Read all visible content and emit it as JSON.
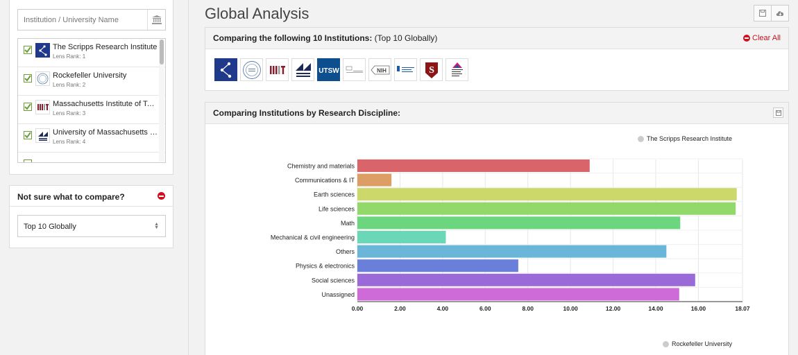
{
  "sidebar": {
    "search_placeholder": "Institution / University Name",
    "institutions": [
      {
        "name": "The Scripps Research Institute",
        "rank": "Lens Rank: 1",
        "checked": true
      },
      {
        "name": "Rockefeller University",
        "rank": "Lens Rank: 2",
        "checked": true
      },
      {
        "name": "Massachusetts Institute of Tech…",
        "rank": "Lens Rank: 3",
        "checked": true
      },
      {
        "name": "University of Massachusetts Me…",
        "rank": "Lens Rank: 4",
        "checked": true
      }
    ],
    "compare_title": "Not sure what to compare?",
    "compare_select": "Top 10 Globally"
  },
  "main": {
    "title": "Global Analysis",
    "comparing_title": "Comparing the following 10 Institutions:",
    "comparing_suffix": "(Top 10 Globally)",
    "clear_all": "Clear All",
    "logos": [
      "scripps-logo",
      "rockefeller-logo",
      "mit-logo",
      "umass-medical-logo",
      "utsw-logo",
      "gladstone-logo",
      "nih-logo",
      "uc-logo",
      "stanford-logo",
      "icahn-mount-sinai-logo"
    ],
    "discipline_title": "Comparing Institutions by Research Discipline:",
    "legend_top": "The Scripps Research Institute",
    "legend_bottom": "Rockefeller University"
  },
  "colors": {
    "accent_red": "#d0101e",
    "checkbox_green": "#6a9e3a"
  },
  "chart_data": {
    "type": "bar",
    "orientation": "horizontal",
    "categories": [
      "Chemistry and materials",
      "Communications & IT",
      "Earth sciences",
      "Life sciences",
      "Math",
      "Mechanical & civil engineering",
      "Others",
      "Physics & electronics",
      "Social sciences",
      "Unassigned"
    ],
    "values": [
      10.9,
      1.6,
      17.8,
      17.75,
      15.15,
      4.15,
      14.5,
      7.55,
      15.85,
      15.1
    ],
    "colors": [
      "#d9656a",
      "#dd9e66",
      "#ccd86a",
      "#92d86a",
      "#6bd67e",
      "#6ad8b6",
      "#6ab6d9",
      "#6a7fd9",
      "#9a6ad9",
      "#cf6ad9"
    ],
    "xticks": [
      "0.00",
      "2.00",
      "4.00",
      "6.00",
      "8.00",
      "10.00",
      "12.00",
      "14.00",
      "16.00",
      "18.07"
    ],
    "xlim": [
      0,
      18.07
    ],
    "grid": true,
    "legend_position": "top-right"
  }
}
